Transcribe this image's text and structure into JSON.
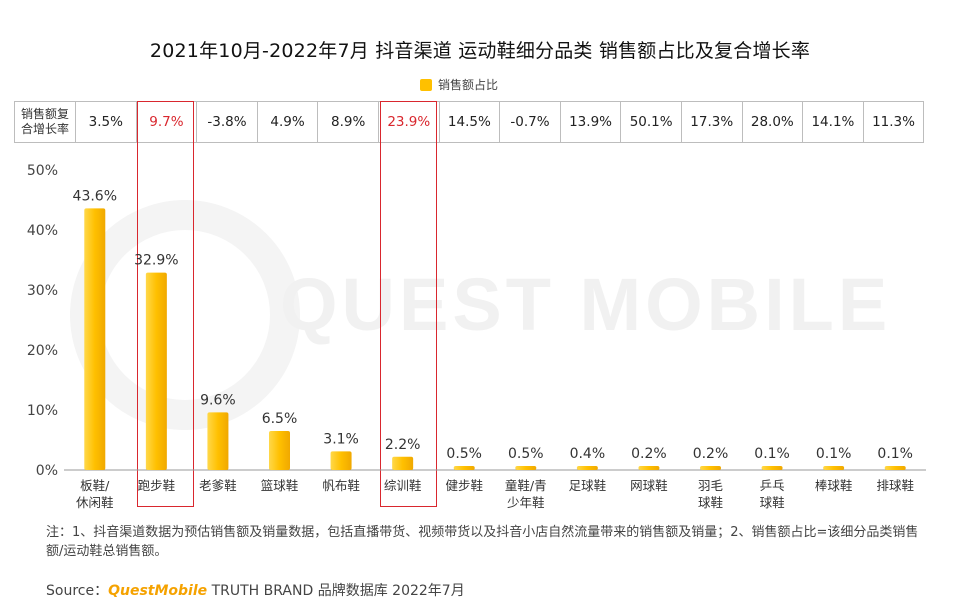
{
  "title": "2021年10月-2022年7月 抖音渠道 运动鞋细分品类 销售额占比及复合增长率",
  "legend": {
    "label": "销售额占比",
    "color": "#ffc000"
  },
  "cagr_table": {
    "header": [
      "销售额复",
      "合增长率"
    ],
    "values": [
      "3.5%",
      "9.7%",
      "-3.8%",
      "4.9%",
      "8.9%",
      "23.9%",
      "14.5%",
      "-0.7%",
      "13.9%",
      "50.1%",
      "17.3%",
      "28.0%",
      "14.1%",
      "11.3%"
    ],
    "highlight_indices": [
      1,
      5
    ]
  },
  "watermark": "QUEST MOBILE",
  "chart_data": {
    "type": "bar",
    "categories": [
      [
        "板鞋/",
        "休闲鞋"
      ],
      [
        "跑步鞋"
      ],
      [
        "老爹鞋"
      ],
      [
        "篮球鞋"
      ],
      [
        "帆布鞋"
      ],
      [
        "综训鞋"
      ],
      [
        "健步鞋"
      ],
      [
        "童鞋/青",
        "少年鞋"
      ],
      [
        "足球鞋"
      ],
      [
        "网球鞋"
      ],
      [
        "羽毛",
        "球鞋"
      ],
      [
        "乒乓",
        "球鞋"
      ],
      [
        "棒球鞋"
      ],
      [
        "排球鞋"
      ]
    ],
    "values": [
      43.6,
      32.9,
      9.6,
      6.5,
      3.1,
      2.2,
      0.5,
      0.5,
      0.4,
      0.2,
      0.2,
      0.1,
      0.1,
      0.1
    ],
    "value_labels": [
      "43.6%",
      "32.9%",
      "9.6%",
      "6.5%",
      "3.1%",
      "2.2%",
      "0.5%",
      "0.5%",
      "0.4%",
      "0.2%",
      "0.2%",
      "0.1%",
      "0.1%",
      "0.1%"
    ],
    "series": [
      {
        "name": "销售额占比",
        "values": [
          43.6,
          32.9,
          9.6,
          6.5,
          3.1,
          2.2,
          0.5,
          0.5,
          0.4,
          0.2,
          0.2,
          0.1,
          0.1,
          0.1
        ]
      }
    ],
    "yticks": [
      "0%",
      "10%",
      "20%",
      "30%",
      "40%",
      "50%"
    ],
    "ylim": [
      0,
      50
    ],
    "bar_color": "#ffc000",
    "highlight_color": "#d9272e",
    "grid": false,
    "legend_position": "top-center"
  },
  "note": "注：1、抖音渠道数据为预估销售额及销量数据，包括直播带货、视频带货以及抖音小店自然流量带来的销售额及销量；2、销售额占比=该细分品类销售额/运动鞋总销售额。",
  "source": {
    "prefix": "Source：",
    "brand": "QuestMobile",
    "suffix": " TRUTH BRAND 品牌数据库 2022年7月"
  }
}
